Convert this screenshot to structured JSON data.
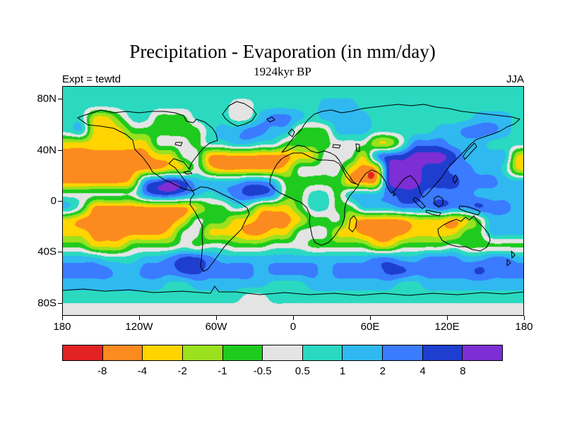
{
  "page": {
    "background": "#ffffff",
    "frame_color": "#000000"
  },
  "chart_data": {
    "type": "heatmap",
    "variant": "filled-contour-global-map",
    "title": "Precipitation - Evaporation (in mm/day)",
    "subtitle": "1924kyr BP",
    "experiment": "Expt = tewtd",
    "season": "JJA",
    "units": "mm/day",
    "x_axis": {
      "ticks": [
        "180",
        "120W",
        "60W",
        "0",
        "60E",
        "120E",
        "180"
      ],
      "lon_values": [
        -180,
        -120,
        -60,
        0,
        60,
        120,
        180
      ]
    },
    "y_axis": {
      "ticks": [
        "80N",
        "40N",
        "0",
        "40S",
        "80S"
      ],
      "lat_values": [
        80,
        40,
        0,
        -40,
        -80
      ]
    },
    "colorbar": {
      "levels": [
        -8,
        -4,
        -2,
        -1,
        -0.5,
        0.5,
        1,
        2,
        4,
        8
      ],
      "labels": [
        "-8",
        "-4",
        "-2",
        "-1",
        "-0.5",
        "0.5",
        "1",
        "2",
        "4",
        "8"
      ],
      "colors": [
        "#e32222",
        "#fb8b1e",
        "#ffd400",
        "#9be11e",
        "#1ecb1e",
        "#e4e4e4",
        "#2ad9c0",
        "#2fb9f0",
        "#3a7bff",
        "#1e3ed0",
        "#7d2ed4"
      ],
      "open_ended": true
    },
    "field_grid": {
      "description": "Estimated P-E bin per 10x10 degree cell; rows north to south (85N..85S), columns west to east (175W..175E).",
      "bin_chars": {
        "r": 0,
        "o": 1,
        "y": 2,
        "l": 3,
        "g": 4,
        "n": 5,
        "t": 6,
        "c": 7,
        "b": 8,
        "d": 9,
        "p": 10
      },
      "bin_meaning": [
        "< -8",
        "-8..-4",
        "-4..-2",
        "-2..-1",
        "-1..-0.5",
        "-0.5..0.5",
        "0.5..1",
        "1..2",
        "2..4",
        "4..8",
        "> 8"
      ],
      "rows": [
        "tttttttttttttttttttttttttttttttttttt",
        "tttttttttttttnntttttcccttttttttttttt",
        "ttyygttgggtttnncbbctccccttttttttccct",
        "tcyyyggggggtccbbccgggccctttttccbbbct",
        "yyyyyyynnngttccttggggnnnyynbbbcccttt",
        "oooooooyynnoooooooyynnnybddpppdccccy",
        "ooooooooyynyoooooynnnnyoopppddbbccty",
        "oooooybdpdccccbbcgggggooopppdddbbbcc",
        "nnnnnnbddbctcbddbggttgcccbddbbbbcccc",
        "cnooooooooyggtnyyygttggcccbbbdbbdbbc",
        "yooooooooynggyyoooyggnyooooyyyoygccc",
        "yyooooooynnyyyooyynnnyyooooyyyyggccc",
        "ggyyyggggngnngggnnngggggyyggggnggggg",
        "ccctttccbddbccccccccccccbbccbbbccbbc",
        "bbbbccbbbddbbbbcbbbbcbbbbddbbbbbdbbb",
        "ccccccccttcccccctttcccccccttcccccccc",
        "ttttttttttttttnntttttttttttttttttttt",
        "nnnnnnnnnnnnnnnnnnnnnnnnnnnnnnnnnnnn"
      ]
    }
  }
}
